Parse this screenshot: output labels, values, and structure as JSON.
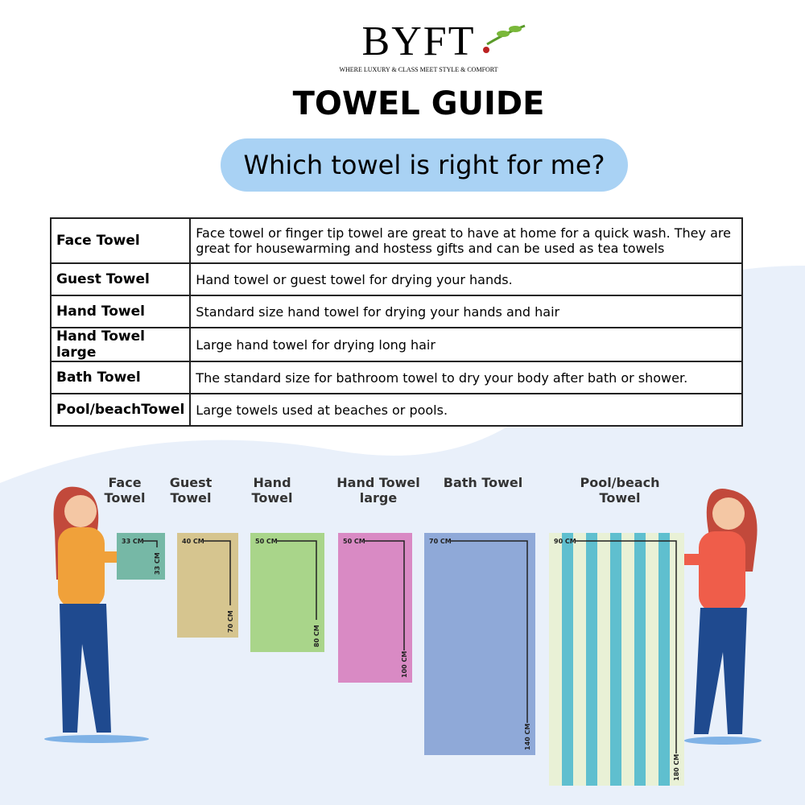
{
  "header": {
    "brand": "BYFT",
    "tagline": "WHERE LUXURY & CLASS MEET STYLE & COMFORT",
    "title": "TOWEL GUIDE",
    "question": "Which towel is right for me?"
  },
  "table": {
    "rows": [
      [
        "Face Towel",
        "Face towel or finger tip towel are great to have at home for a quick wash. They are great for housewarming and hostess gifts and can be used as tea towels"
      ],
      [
        "Guest Towel",
        "Hand towel or guest towel for drying your hands."
      ],
      [
        "Hand Towel",
        "Standard size hand towel for drying your hands and hair"
      ],
      [
        "Hand Towel large",
        "Large hand towel for drying long hair"
      ],
      [
        "Bath Towel",
        "The standard size for bathroom towel to dry your body after bath or shower."
      ],
      [
        "Pool/beachTowel",
        "Large towels used at beaches or pools."
      ]
    ]
  },
  "towels": [
    {
      "label": "Face Towel",
      "width": "33 CM",
      "length": "33 CM",
      "color": "#76b8a6"
    },
    {
      "label": "Guest Towel",
      "width": "40 CM",
      "length": "70 CM",
      "color": "#d6c58f"
    },
    {
      "label": "Hand Towel",
      "width": "50 CM",
      "length": "80 CM",
      "color": "#a9d58a"
    },
    {
      "label": "Hand Towel large",
      "width": "50 CM",
      "length": "100 CM",
      "color": "#d98ac4"
    },
    {
      "label": "Bath Towel",
      "width": "70 CM",
      "length": "140 CM",
      "color": "#8fa9d8"
    },
    {
      "label": "Pool/beach Towel",
      "width": "90 CM",
      "length": "180 CM",
      "color": "#5fbfcf"
    }
  ]
}
